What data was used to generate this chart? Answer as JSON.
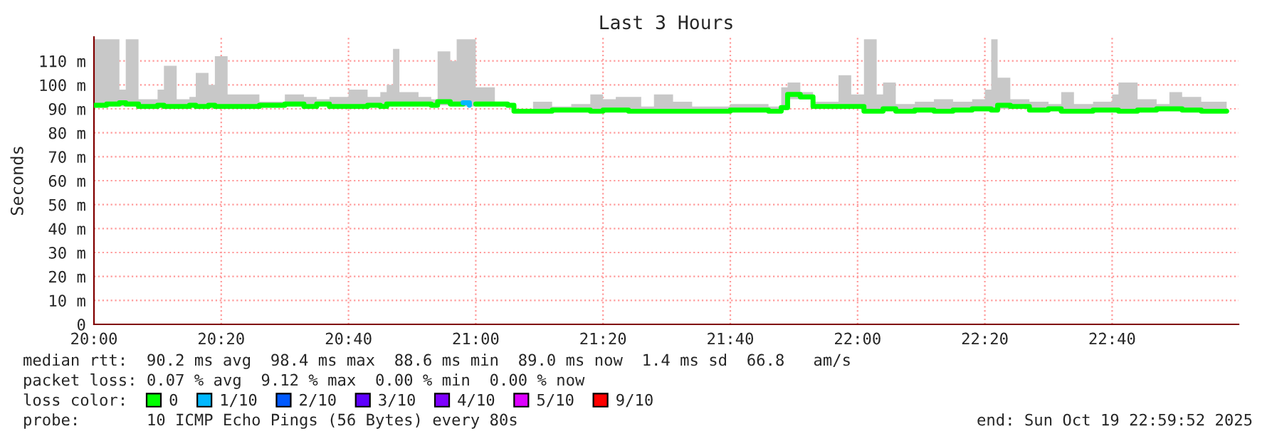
{
  "chart_data": {
    "type": "step",
    "title": "Last 3 Hours",
    "ylabel": "Seconds",
    "xlim": [
      20,
      22.9978
    ],
    "ylim": [
      0,
      120
    ],
    "xticks": [
      {
        "value": 20,
        "label": "20:00"
      },
      {
        "value": 20.3333,
        "label": "20:20"
      },
      {
        "value": 20.6667,
        "label": "20:40"
      },
      {
        "value": 21,
        "label": "21:00"
      },
      {
        "value": 21.3333,
        "label": "21:20"
      },
      {
        "value": 21.6667,
        "label": "21:40"
      },
      {
        "value": 22,
        "label": "22:00"
      },
      {
        "value": 22.3333,
        "label": "22:20"
      },
      {
        "value": 22.6667,
        "label": "22:40"
      }
    ],
    "yticks": [
      0,
      {
        "value": 10,
        "label": "10 m"
      },
      {
        "value": 20,
        "label": "20 m"
      },
      {
        "value": 30,
        "label": "30 m"
      },
      {
        "value": 40,
        "label": "40 m"
      },
      {
        "value": 50,
        "label": "50 m"
      },
      {
        "value": 60,
        "label": "60 m"
      },
      {
        "value": 70,
        "label": "70 m"
      },
      {
        "value": 80,
        "label": "80 m"
      },
      {
        "value": 90,
        "label": "90 m"
      },
      {
        "value": 100,
        "label": "100 m"
      },
      {
        "value": 110,
        "label": "110 m"
      }
    ],
    "grid": true,
    "legend": "bottom",
    "line_style": "solid",
    "marker": "none",
    "x": [
      20.0,
      20.0333,
      20.0667,
      20.0833,
      20.1167,
      20.1667,
      20.1833,
      20.2167,
      20.25,
      20.2667,
      20.3,
      20.3167,
      20.35,
      20.4,
      20.4333,
      20.5,
      20.55,
      20.5833,
      20.6167,
      20.6667,
      20.7167,
      20.75,
      20.7667,
      20.7833,
      20.8,
      20.85,
      20.8833,
      20.9,
      20.9333,
      20.95,
      20.9667,
      21.0,
      21.05,
      21.0833,
      21.1,
      21.15,
      21.2,
      21.25,
      21.3,
      21.3333,
      21.3667,
      21.4,
      21.4333,
      21.4667,
      21.5167,
      21.5667,
      21.6167,
      21.6667,
      21.7167,
      21.7667,
      21.8,
      21.8167,
      21.85,
      21.8833,
      21.95,
      21.9833,
      22.0167,
      22.05,
      22.0667,
      22.1,
      22.15,
      22.2,
      22.25,
      22.3,
      22.3333,
      22.35,
      22.3667,
      22.4,
      22.45,
      22.5,
      22.5333,
      22.5667,
      22.6167,
      22.6667,
      22.6833,
      22.7333,
      22.7833,
      22.8167,
      22.85,
      22.9,
      22.9667
    ],
    "series": [
      {
        "name": "0",
        "color": "#00ff00",
        "values": [
          91.5,
          92,
          92.5,
          92,
          91,
          91.5,
          91,
          91,
          91.5,
          91,
          91.5,
          91,
          91,
          91,
          91.5,
          92,
          91,
          92,
          91,
          91,
          91.5,
          91,
          92,
          92,
          92,
          92,
          91.5,
          93,
          92,
          92,
          null,
          92,
          92,
          91.5,
          89,
          89,
          89.5,
          89.5,
          89,
          89.5,
          89.5,
          89,
          89,
          89,
          89,
          89,
          89,
          89.5,
          89.5,
          89,
          90.5,
          96,
          95,
          91,
          91,
          91,
          89,
          89,
          90,
          89,
          89.5,
          89,
          89.5,
          90,
          90,
          89.5,
          91.5,
          91,
          89.5,
          90,
          89,
          89,
          89.5,
          89.5,
          89,
          89.5,
          90,
          90,
          89.5,
          89,
          89
        ],
        "lower": [
          90.5,
          91,
          91,
          91,
          90.5,
          90.5,
          90.5,
          90.5,
          90.5,
          90.5,
          90.5,
          90.5,
          90.5,
          90.5,
          90.5,
          91,
          90.5,
          91,
          90.5,
          90.5,
          90.5,
          90.5,
          91,
          91,
          91,
          91,
          90.5,
          91.5,
          91,
          91,
          91,
          91,
          91,
          90.5,
          88.5,
          88.5,
          88.5,
          88.5,
          88.5,
          88.5,
          88.5,
          88.5,
          88.5,
          88.5,
          88.5,
          88.5,
          88.5,
          88.5,
          88.5,
          88.5,
          89.5,
          94,
          94,
          90.5,
          90.5,
          90.5,
          88.5,
          88.5,
          89,
          88.5,
          88.5,
          88.5,
          88.5,
          89,
          89,
          89,
          90,
          90,
          88.5,
          89,
          88.5,
          88.5,
          88.5,
          88.5,
          88.5,
          88.5,
          89,
          89,
          88.5,
          88.5,
          88.5
        ],
        "upper": [
          119,
          119,
          98,
          119,
          94,
          98,
          108,
          94,
          95,
          105,
          100,
          112,
          96,
          96,
          93,
          96,
          95,
          94,
          95,
          98,
          95,
          97,
          100,
          115,
          97,
          95,
          94,
          114,
          110,
          119,
          119,
          99,
          93,
          92,
          90,
          93,
          91,
          92,
          96,
          94,
          95,
          95,
          91,
          96,
          93,
          91,
          91,
          92,
          92,
          91,
          99,
          101,
          97,
          93,
          104,
          96,
          119,
          96,
          101,
          92,
          93,
          94,
          93,
          94,
          98,
          119,
          103,
          94,
          93,
          92,
          97,
          92,
          93,
          96,
          101,
          94,
          92,
          97,
          95,
          93,
          93
        ]
      },
      {
        "name": "1/10",
        "color": "#00b8ff",
        "x": [
          20.9667,
          20.9833
        ],
        "values": [
          92.5,
          91.5
        ]
      },
      {
        "name": "2/10",
        "color": "#0059ff",
        "values": [
          null,
          null,
          null,
          null,
          null,
          null,
          null,
          null,
          null,
          null,
          null,
          null,
          null,
          null,
          null,
          null,
          null,
          null,
          null,
          null,
          null,
          null,
          null,
          null,
          null,
          null,
          null,
          null,
          null,
          null,
          null,
          null,
          null,
          null,
          null,
          null,
          null,
          null,
          null,
          null,
          null,
          null,
          null,
          null,
          null,
          null,
          null,
          null,
          null,
          null,
          null,
          null,
          null,
          null,
          null,
          null,
          null,
          null,
          null,
          null,
          null,
          null,
          null,
          null,
          null,
          null,
          null,
          null,
          null,
          null,
          null,
          null,
          null,
          null,
          null,
          null,
          null,
          null,
          null,
          null,
          null
        ]
      },
      {
        "name": "3/10",
        "color": "#5e00ff",
        "values": [
          null,
          null,
          null,
          null,
          null,
          null,
          null,
          null,
          null,
          null,
          null,
          null,
          null,
          null,
          null,
          null,
          null,
          null,
          null,
          null,
          null,
          null,
          null,
          null,
          null,
          null,
          null,
          null,
          null,
          null,
          null,
          null,
          null,
          null,
          null,
          null,
          null,
          null,
          null,
          null,
          null,
          null,
          null,
          null,
          null,
          null,
          null,
          null,
          null,
          null,
          null,
          null,
          null,
          null,
          null,
          null,
          null,
          null,
          null,
          null,
          null,
          null,
          null,
          null,
          null,
          null,
          null,
          null,
          null,
          null,
          null,
          null,
          null,
          null,
          null,
          null,
          null,
          null,
          null,
          null,
          null
        ]
      },
      {
        "name": "4/10",
        "color": "#7e00ff",
        "values": [
          null,
          null,
          null,
          null,
          null,
          null,
          null,
          null,
          null,
          null,
          null,
          null,
          null,
          null,
          null,
          null,
          null,
          null,
          null,
          null,
          null,
          null,
          null,
          null,
          null,
          null,
          null,
          null,
          null,
          null,
          null,
          null,
          null,
          null,
          null,
          null,
          null,
          null,
          null,
          null,
          null,
          null,
          null,
          null,
          null,
          null,
          null,
          null,
          null,
          null,
          null,
          null,
          null,
          null,
          null,
          null,
          null,
          null,
          null,
          null,
          null,
          null,
          null,
          null,
          null,
          null,
          null,
          null,
          null,
          null,
          null,
          null,
          null,
          null,
          null,
          null,
          null,
          null,
          null,
          null,
          null
        ]
      },
      {
        "name": "5/10",
        "color": "#dd00ff",
        "values": [
          null,
          null,
          null,
          null,
          null,
          null,
          null,
          null,
          null,
          null,
          null,
          null,
          null,
          null,
          null,
          null,
          null,
          null,
          null,
          null,
          null,
          null,
          null,
          null,
          null,
          null,
          null,
          null,
          null,
          null,
          null,
          null,
          null,
          null,
          null,
          null,
          null,
          null,
          null,
          null,
          null,
          null,
          null,
          null,
          null,
          null,
          null,
          null,
          null,
          null,
          null,
          null,
          null,
          null,
          null,
          null,
          null,
          null,
          null,
          null,
          null,
          null,
          null,
          null,
          null,
          null,
          null,
          null,
          null,
          null,
          null,
          null,
          null,
          null,
          null,
          null,
          null,
          null,
          null,
          null,
          null
        ]
      },
      {
        "name": "9/10",
        "color": "#ff0000",
        "values": [
          null,
          null,
          null,
          null,
          null,
          null,
          null,
          null,
          null,
          null,
          null,
          null,
          null,
          null,
          null,
          null,
          null,
          null,
          null,
          null,
          null,
          null,
          null,
          null,
          null,
          null,
          null,
          null,
          null,
          null,
          null,
          null,
          null,
          null,
          null,
          null,
          null,
          null,
          null,
          null,
          null,
          null,
          null,
          null,
          null,
          null,
          null,
          null,
          null,
          null,
          null,
          null,
          null,
          null,
          null,
          null,
          null,
          null,
          null,
          null,
          null,
          null,
          null,
          null,
          null,
          null,
          null,
          null,
          null,
          null,
          null,
          null,
          null,
          null,
          null,
          null,
          null,
          null,
          null,
          null,
          null
        ]
      }
    ],
    "annotations": [
      "median rtt:  90.2 ms avg  98.4 ms max  88.6 ms min  89.0 ms now  1.4 ms sd  66.8   am/s",
      "packet loss: 0.07 % avg  9.12 % max  0.00 % min  0.00 % now",
      "loss color:",
      "probe:       10 ICMP Echo Pings (56 Bytes) every 80s",
      "end: Sun Oct 19 22:59:52 2025"
    ]
  }
}
